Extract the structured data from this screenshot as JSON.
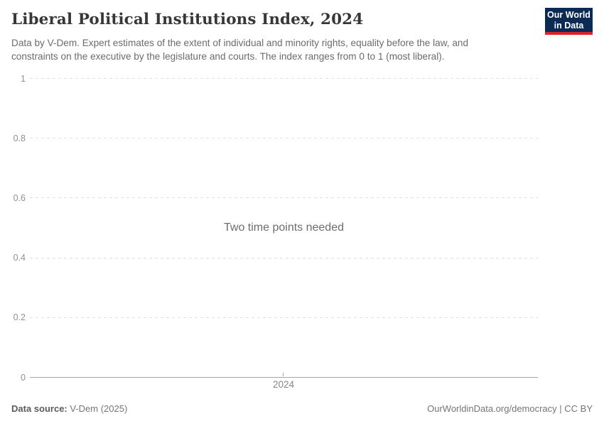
{
  "header": {
    "title": "Liberal Political Institutions Index, 2024",
    "subtitle_lines": [
      "Data by V-Dem. Expert estimates of the extent of individual and minority rights, equality before the law, and",
      "constraints on the executive by the legislature and courts. The index ranges from 0 to 1 (most liberal)."
    ],
    "logo": {
      "line1": "Our World",
      "line2": "in Data"
    }
  },
  "chart_data": {
    "type": "line",
    "title": "Liberal Political Institutions Index, 2024",
    "series": [],
    "empty_state_message": "Two time points needed",
    "x_axis": {
      "ticks": [
        "2024"
      ]
    },
    "y_axis": {
      "range": [
        0,
        1
      ],
      "ticks": [
        {
          "label": "1",
          "value": 1
        },
        {
          "label": "0.8",
          "value": 0.8
        },
        {
          "label": "0.6",
          "value": 0.6
        },
        {
          "label": "0.4",
          "value": 0.4
        },
        {
          "label": "0.2",
          "value": 0.2
        },
        {
          "label": "0",
          "value": 0
        }
      ]
    },
    "grid": "horizontal-dashed",
    "legend": "none"
  },
  "footer": {
    "source_label": "Data source:",
    "source_value": " V-Dem (2025)",
    "credit": "OurWorldinData.org/democracy | CC BY"
  },
  "colors": {
    "logo_background": "#0b2b55",
    "logo_stripe": "#d8232a",
    "title_text": "#373737",
    "subtitle_text": "#6b6b6b",
    "gridline": "#e0e0e0",
    "axis_line": "#a8a8a8",
    "tick_label": "#8f8f8f",
    "message_text": "#6d6d6d",
    "footer_text": "#757575"
  }
}
